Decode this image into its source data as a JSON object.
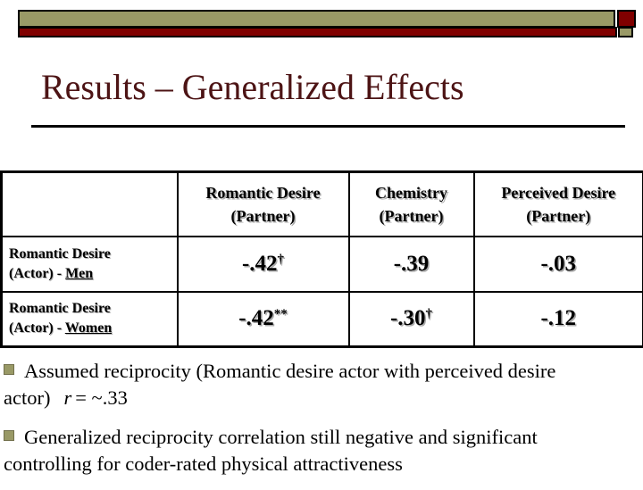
{
  "colors": {
    "banner_tan": "#999966",
    "banner_maroon": "#800000",
    "title_maroon": "#4d1415"
  },
  "title": "Results – Generalized Effects",
  "table": {
    "headers": [
      "Romantic Desire\n(Partner)",
      "Chemistry\n(Partner)",
      "Perceived Desire\n(Partner)"
    ],
    "rows": [
      {
        "label": "Romantic Desire\n(Actor) - ",
        "group": "Men",
        "v1": "-.42",
        "v1sup": "†",
        "v2": "-.39",
        "v2sup": "",
        "v3": "-.03",
        "v3sup": ""
      },
      {
        "label": "Romantic Desire\n(Actor) - ",
        "group": "Women",
        "v1": "-.42",
        "v1sup": "**",
        "v2": "-.30",
        "v2sup": "†",
        "v3": "-.12",
        "v3sup": ""
      }
    ]
  },
  "bullets": [
    {
      "text": "Assumed reciprocity (Romantic desire actor with perceived desire actor)",
      "r_var": "r",
      "r_rest": "= ~.33"
    },
    {
      "text": "Generalized reciprocity correlation still negative and significant controlling for coder-rated physical attractiveness"
    }
  ]
}
